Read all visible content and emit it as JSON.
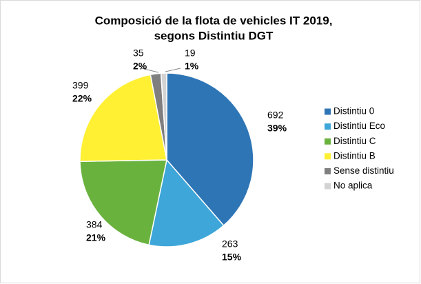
{
  "chart_data": {
    "type": "pie",
    "title": [
      "Composició de la flota de vehicles IT 2019,",
      "segons Distintiu DGT"
    ],
    "categories": [
      "Distintiu 0",
      "Distintiu Eco",
      "Distintiu C",
      "Distintiu B",
      "Sense distintiu",
      "No aplica"
    ],
    "values": [
      692,
      263,
      384,
      399,
      35,
      19
    ],
    "percent_labels": [
      "39%",
      "15%",
      "21%",
      "22%",
      "2%",
      "1%"
    ],
    "colors": [
      "#2e75b6",
      "#3ea6d8",
      "#6ab23e",
      "#fff034",
      "#7f7f7f",
      "#d3d3d3"
    ],
    "legend": "right"
  }
}
